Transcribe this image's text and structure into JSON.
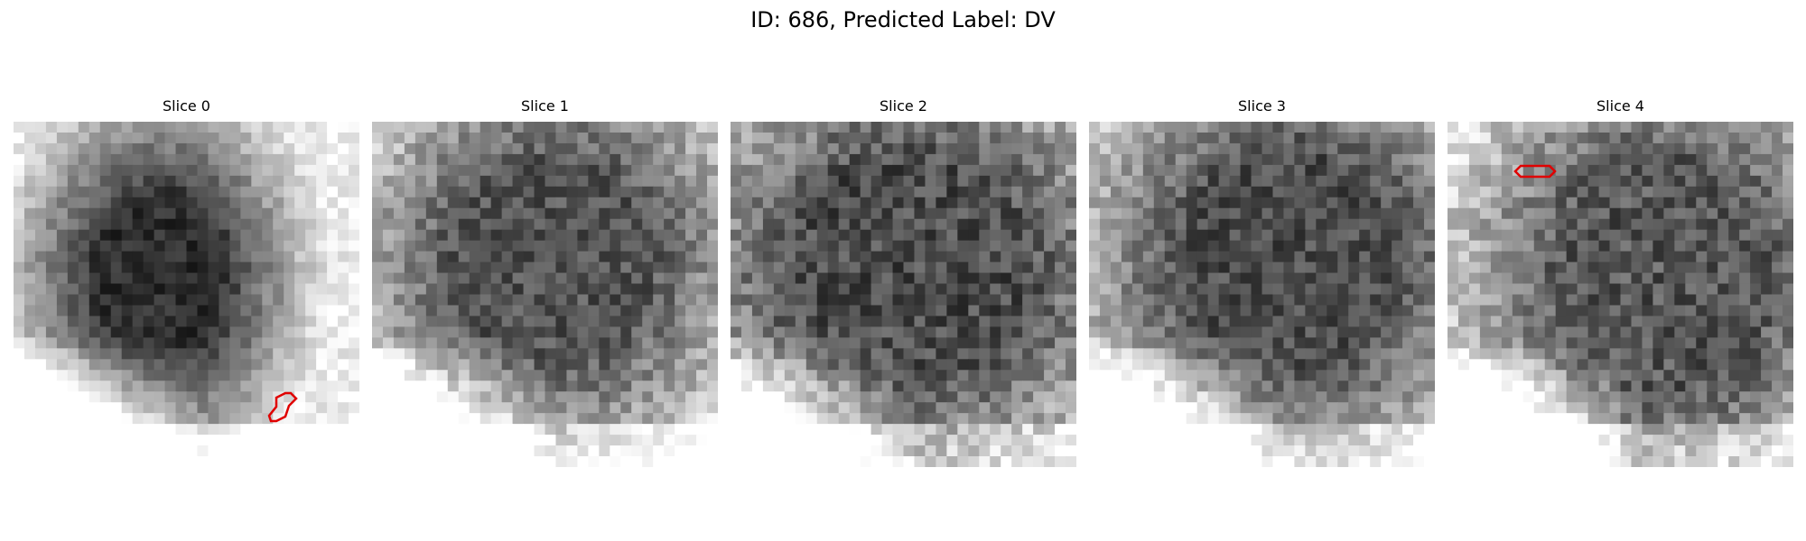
{
  "figure": {
    "title": "ID: 686, Predicted Label: DV"
  },
  "slices": [
    {
      "title": "Slice 0",
      "contour_color": "#e00000"
    },
    {
      "title": "Slice 1",
      "contour_color": ""
    },
    {
      "title": "Slice 2",
      "contour_color": ""
    },
    {
      "title": "Slice 3",
      "contour_color": ""
    },
    {
      "title": "Slice 4",
      "contour_color": "#e00000"
    }
  ],
  "colormap": "gray"
}
